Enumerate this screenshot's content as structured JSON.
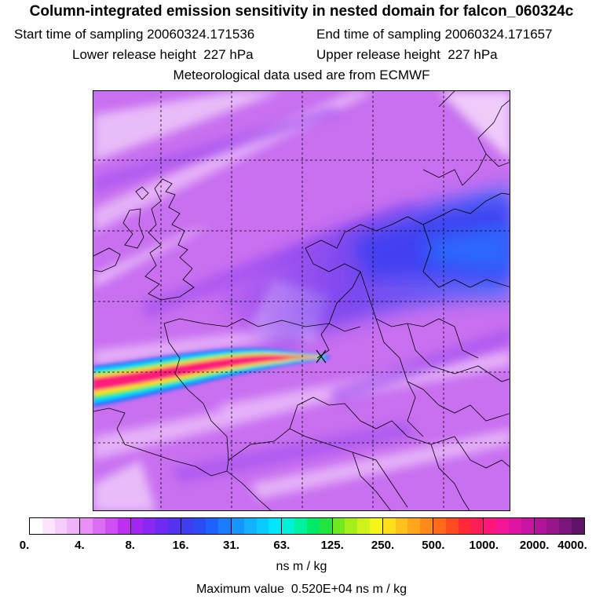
{
  "header": {
    "title": "Column-integrated emission sensitivity in nested domain for falcon_060324c",
    "start_label": "Start time of sampling",
    "start_value": "20060324.171536",
    "end_label": "End time of sampling",
    "end_value": "20060324.171657",
    "lower_label": "Lower release height",
    "lower_value": "227 hPa",
    "upper_label": "Upper release height",
    "upper_value": "227 hPa",
    "met_text": "Meteorological data used are from ECMWF"
  },
  "map": {
    "name": "emission-sensitivity-map",
    "release_marker": "x-marker",
    "plume_direction": "westward",
    "colors": {
      "background": "#c870f0",
      "light": "#f3d6fb",
      "mid": "#a24ff0",
      "dark_band": "#5b35ee",
      "core_band": "#2a6cff",
      "plume_magenta": "#ff1f7a",
      "plume_yellow": "#ffe600",
      "plume_green": "#2fe64a",
      "plume_cyan": "#00e0ff",
      "plume_blue": "#1a6bff",
      "coast": "#000000"
    }
  },
  "colorbar": {
    "ticks": [
      "0.",
      "4.",
      "8.",
      "16.",
      "31.",
      "63.",
      "125.",
      "250.",
      "500.",
      "1000.",
      "2000.",
      "4000."
    ],
    "colors": [
      "#ffffff",
      "#fbe5fd",
      "#f6ccfb",
      "#f0b2f9",
      "#e890f6",
      "#dc6ef4",
      "#cf4ff2",
      "#bf30ee",
      "#a525f0",
      "#8a27f0",
      "#6f2cf0",
      "#5533ee",
      "#3f3df0",
      "#2b4cf5",
      "#1d62ff",
      "#1a7dff",
      "#1696ff",
      "#12b0ff",
      "#0acbff",
      "#00e6ff",
      "#00f0d8",
      "#00f0a0",
      "#00ea6a",
      "#21e640",
      "#6fe81f",
      "#a4ee1a",
      "#cff21a",
      "#f5f51a",
      "#ffe01a",
      "#ffc21a",
      "#ffa61a",
      "#ff8a1a",
      "#ff6a1a",
      "#ff4a20",
      "#ff2a35",
      "#ff1d55",
      "#ff1778",
      "#f01696",
      "#dd15a2",
      "#c814a3",
      "#b01599",
      "#97168c",
      "#7a157b",
      "#5e1268"
    ],
    "unit": "ns m / kg"
  },
  "footer": {
    "max_label": "Maximum value",
    "max_value": "0.520E+04 ns m / kg"
  }
}
